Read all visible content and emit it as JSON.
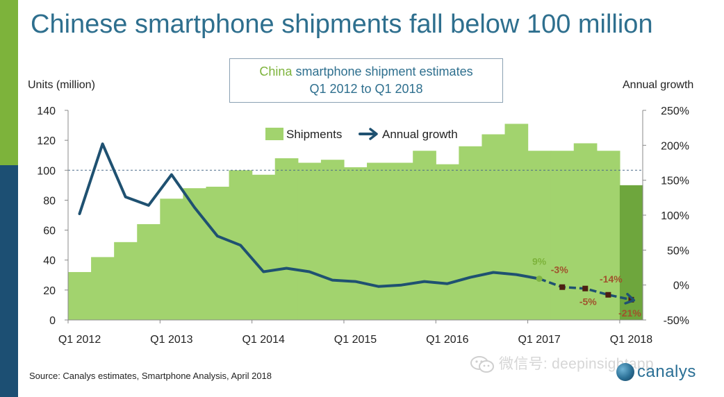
{
  "title": "Chinese smartphone shipments fall below 100 million",
  "subtitle": {
    "line1_highlight": "China",
    "line1_rest": " smartphone shipment estimates",
    "line2": "Q1 2012 to Q1 2018"
  },
  "axis_titles": {
    "left": "Units (million)",
    "right": "Annual growth"
  },
  "source": "Source: Canalys estimates, Smartphone Analysis, April 2018",
  "watermark": "微信号: deepinsightapp",
  "logo_text": "canalys",
  "colors": {
    "bar": "#a2d36e",
    "bar_last": "#6ea63d",
    "line": "#1f5171",
    "dark_marker": "#4d1f12",
    "label_green": "#7db33b",
    "label_brown": "#a0522d",
    "reference_line": "#4a6a88"
  },
  "chart_data": {
    "type": "bar",
    "categories": [
      "Q1 2012",
      "Q2 2012",
      "Q3 2012",
      "Q4 2012",
      "Q1 2013",
      "Q2 2013",
      "Q3 2013",
      "Q4 2013",
      "Q1 2014",
      "Q2 2014",
      "Q3 2014",
      "Q4 2014",
      "Q1 2015",
      "Q2 2015",
      "Q3 2015",
      "Q4 2015",
      "Q1 2016",
      "Q2 2016",
      "Q3 2016",
      "Q4 2016",
      "Q1 2017",
      "Q2 2017",
      "Q3 2017",
      "Q4 2017",
      "Q1 2018"
    ],
    "tick_labels": [
      "Q1 2012",
      "Q1 2013",
      "Q1 2014",
      "Q1 2015",
      "Q1 2016",
      "Q1 2017",
      "Q1 2018"
    ],
    "series": [
      {
        "name": "Shipments",
        "type": "bar",
        "axis": "left",
        "values": [
          32,
          42,
          52,
          64,
          81,
          88,
          89,
          100,
          97,
          108,
          105,
          107,
          102,
          105,
          105,
          113,
          104,
          116,
          124,
          131,
          113,
          113,
          118,
          113,
          90
        ]
      },
      {
        "name": "Annual growth",
        "type": "line",
        "axis": "right",
        "unit": "%",
        "values": [
          102,
          202,
          126,
          114,
          158,
          111,
          70,
          57,
          19,
          24,
          19,
          7,
          5,
          -2,
          0,
          5,
          2,
          11,
          18,
          15,
          9,
          -3,
          -5,
          -14,
          -21
        ]
      }
    ],
    "data_labels": [
      {
        "category": "Q1 2017",
        "text": "9%",
        "style": "green"
      },
      {
        "category": "Q2 2017",
        "text": "-3%",
        "style": "brown"
      },
      {
        "category": "Q3 2017",
        "text": "-5%",
        "style": "brown"
      },
      {
        "category": "Q4 2017",
        "text": "-14%",
        "style": "brown"
      },
      {
        "category": "Q1 2018",
        "text": "-21%",
        "style": "brown"
      }
    ],
    "y_left": {
      "min": 0,
      "max": 140,
      "ticks": [
        0,
        20,
        40,
        60,
        80,
        100,
        120,
        140
      ]
    },
    "y_right": {
      "min": -50,
      "max": 250,
      "ticks": [
        "-50%",
        "0%",
        "50%",
        "100%",
        "150%",
        "200%",
        "250%"
      ]
    },
    "reference_line": {
      "axis": "left",
      "value": 100,
      "style": "dashed"
    },
    "legend": {
      "position": "top-center"
    }
  }
}
